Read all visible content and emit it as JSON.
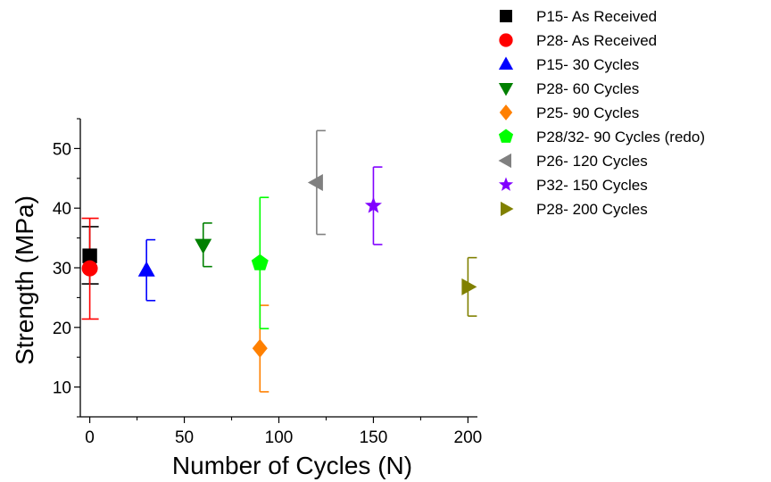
{
  "chart_data": {
    "type": "scatter",
    "title": "",
    "xlabel": "Number of Cycles (N)",
    "ylabel": "Strength (MPa)",
    "xlim": [
      -5,
      205
    ],
    "ylim": [
      5,
      55
    ],
    "x_ticks": [
      0,
      50,
      100,
      150,
      200
    ],
    "y_ticks": [
      10,
      20,
      30,
      40,
      50
    ],
    "grid": false,
    "legend_position": "right",
    "series": [
      {
        "name": "P15- As Received",
        "x": 0,
        "y": 32.0,
        "err_low": 27.3,
        "err_high": 36.9,
        "marker": "square",
        "color": "#000000"
      },
      {
        "name": "P28- As Received",
        "x": 0,
        "y": 29.9,
        "err_low": 21.4,
        "err_high": 38.3,
        "marker": "circle",
        "color": "#ff0000"
      },
      {
        "name": "P15- 30 Cycles",
        "x": 30,
        "y": 29.6,
        "err_low": 24.5,
        "err_high": 34.7,
        "marker": "triangle-up",
        "color": "#0000ff"
      },
      {
        "name": "P28- 60 Cycles",
        "x": 60,
        "y": 33.8,
        "err_low": 30.2,
        "err_high": 37.5,
        "marker": "triangle-down",
        "color": "#008000"
      },
      {
        "name": "P25- 90 Cycles",
        "x": 90,
        "y": 16.5,
        "err_low": 9.2,
        "err_high": 23.7,
        "marker": "diamond",
        "color": "#ff8000"
      },
      {
        "name": "P28/32- 90 Cycles (redo)",
        "x": 90,
        "y": 30.8,
        "err_low": 19.8,
        "err_high": 41.8,
        "marker": "pentagon",
        "color": "#00ff00"
      },
      {
        "name": "P26- 120 Cycles",
        "x": 120,
        "y": 44.3,
        "err_low": 35.6,
        "err_high": 53.0,
        "marker": "triangle-left",
        "color": "#808080"
      },
      {
        "name": "P32- 150 Cycles",
        "x": 150,
        "y": 40.4,
        "err_low": 33.9,
        "err_high": 46.9,
        "marker": "star",
        "color": "#8000ff"
      },
      {
        "name": "P28- 200 Cycles",
        "x": 200,
        "y": 26.8,
        "err_low": 21.9,
        "err_high": 31.7,
        "marker": "triangle-right",
        "color": "#808000"
      }
    ]
  }
}
